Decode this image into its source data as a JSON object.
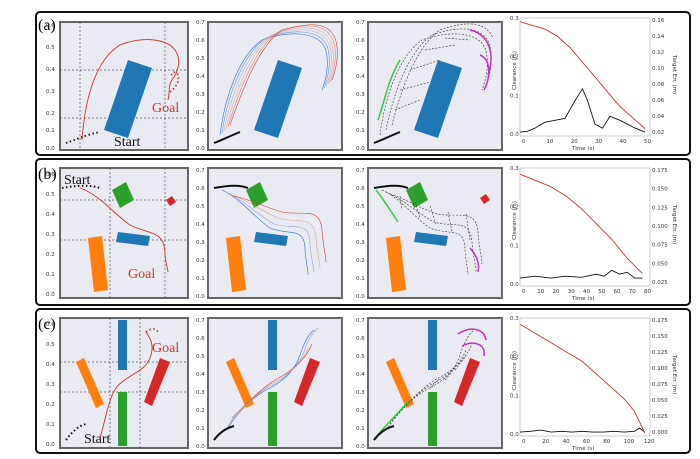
{
  "rows": [
    {
      "id": "a",
      "label": "(a)",
      "start_label": "Start",
      "goal_label": "Goal",
      "y_ticks": [
        "0.6",
        "0.5",
        "0.4",
        "0.3",
        "0.2",
        "0.1",
        "0.0"
      ],
      "panel_ticks": [
        "0.7",
        "0.6",
        "0.5",
        "0.4",
        "0.3",
        "0.2",
        "0.1",
        "0.0"
      ],
      "chart": {
        "ylabel": "Clearance (m)",
        "ylabel_right": "Target Err. (m)",
        "xlabel": "Time (s)",
        "xticks": [
          "0",
          "10",
          "20",
          "30",
          "40",
          "50"
        ],
        "yticks_left": [
          "0.3",
          "0.2",
          "0.1",
          "0.0"
        ],
        "yticks_right": [
          "0.16",
          "0.14",
          "0.12",
          "0.10",
          "0.08",
          "0.06",
          "0.04",
          "0.02"
        ]
      }
    },
    {
      "id": "b",
      "label": "(b)",
      "start_label": "Start",
      "goal_label": "Goal",
      "y_ticks": [
        "0.6",
        "0.5",
        "0.4",
        "0.3",
        "0.2",
        "0.1",
        "0.0"
      ],
      "panel_ticks": [
        "0.7",
        "0.6",
        "0.5",
        "0.4",
        "0.3",
        "0.2",
        "0.1",
        "0.0"
      ],
      "chart": {
        "ylabel": "Clearance (m)",
        "ylabel_right": "Target Err. (m)",
        "xlabel": "Time (s)",
        "xticks": [
          "0",
          "10",
          "20",
          "30",
          "40",
          "50",
          "60",
          "70",
          "80"
        ],
        "yticks_left": [
          "0.3",
          "0.2",
          "0.1",
          "0.0"
        ],
        "yticks_right": [
          "0.175",
          "0.150",
          "0.125",
          "0.100",
          "0.075",
          "0.050",
          "0.025"
        ]
      }
    },
    {
      "id": "c",
      "label": "(c)",
      "start_label": "Start",
      "goal_label": "Goal",
      "y_ticks": [
        "0.6",
        "0.5",
        "0.4",
        "0.3",
        "0.2",
        "0.1",
        "0.0"
      ],
      "panel_ticks": [
        "0.7",
        "0.6",
        "0.5",
        "0.4",
        "0.3",
        "0.2",
        "0.1",
        "0.0"
      ],
      "chart": {
        "ylabel": "Clearance (m)",
        "ylabel_right": "Target Err. (m)",
        "xlabel": "Time (s)",
        "xticks": [
          "0",
          "20",
          "40",
          "60",
          "80",
          "100",
          "120"
        ],
        "yticks_left": [
          "0.3",
          "0.2",
          "0.1",
          "0.0"
        ],
        "yticks_right": [
          "0.175",
          "0.150",
          "0.125",
          "0.100",
          "0.075",
          "0.050",
          "0.025",
          "0.000"
        ]
      }
    }
  ],
  "chart_data": [
    {
      "type": "line",
      "xlabel": "Time (s)",
      "ylabel": "Clearance (m)",
      "ylabel_right": "Target Err. (m)",
      "xlim": [
        0,
        52
      ],
      "ylim": [
        0,
        0.3
      ],
      "ylim_right": [
        0.01,
        0.17
      ],
      "series": [
        {
          "x": [
            0,
            3,
            6,
            10,
            14,
            18,
            22,
            25,
            27,
            30,
            33,
            36,
            40,
            43,
            46,
            50
          ],
          "values": [
            0.01,
            0.012,
            0.02,
            0.035,
            0.04,
            0.045,
            0.09,
            0.12,
            0.09,
            0.03,
            0.02,
            0.05,
            0.04,
            0.03,
            0.02,
            0.01
          ]
        },
        {
          "axis": "right",
          "x": [
            0,
            5,
            10,
            15,
            20,
            25,
            30,
            35,
            40,
            45,
            50
          ],
          "values": [
            0.165,
            0.16,
            0.155,
            0.145,
            0.13,
            0.11,
            0.09,
            0.07,
            0.05,
            0.035,
            0.02
          ]
        }
      ]
    },
    {
      "type": "line",
      "xlabel": "Time (s)",
      "ylabel": "Clearance (m)",
      "ylabel_right": "Target Err. (m)",
      "xlim": [
        0,
        85
      ],
      "ylim": [
        0,
        0.3
      ],
      "ylim_right": [
        0.0,
        0.19
      ],
      "series": [
        {
          "x": [
            0,
            10,
            20,
            30,
            40,
            50,
            55,
            60,
            65,
            70,
            75,
            80
          ],
          "values": [
            0.02,
            0.025,
            0.02,
            0.025,
            0.022,
            0.03,
            0.025,
            0.04,
            0.03,
            0.035,
            0.02,
            0.02
          ]
        },
        {
          "axis": "right",
          "x": [
            0,
            10,
            20,
            30,
            40,
            50,
            60,
            70,
            80
          ],
          "values": [
            0.18,
            0.17,
            0.16,
            0.145,
            0.125,
            0.1,
            0.075,
            0.045,
            0.02
          ]
        }
      ]
    },
    {
      "type": "line",
      "xlabel": "Time (s)",
      "ylabel": "Clearance (m)",
      "ylabel_right": "Target Err. (m)",
      "xlim": [
        0,
        125
      ],
      "ylim": [
        0,
        0.3
      ],
      "ylim_right": [
        0.0,
        0.19
      ],
      "series": [
        {
          "x": [
            0,
            10,
            20,
            30,
            40,
            50,
            60,
            70,
            80,
            90,
            100,
            110,
            115,
            120
          ],
          "values": [
            0.01,
            0.012,
            0.015,
            0.01,
            0.012,
            0.01,
            0.012,
            0.01,
            0.01,
            0.012,
            0.01,
            0.012,
            0.02,
            0.01
          ]
        },
        {
          "axis": "right",
          "x": [
            0,
            10,
            20,
            30,
            40,
            50,
            60,
            70,
            80,
            90,
            100,
            110,
            120
          ],
          "values": [
            0.18,
            0.17,
            0.16,
            0.15,
            0.14,
            0.13,
            0.12,
            0.105,
            0.09,
            0.075,
            0.06,
            0.04,
            0.005
          ]
        }
      ]
    }
  ]
}
